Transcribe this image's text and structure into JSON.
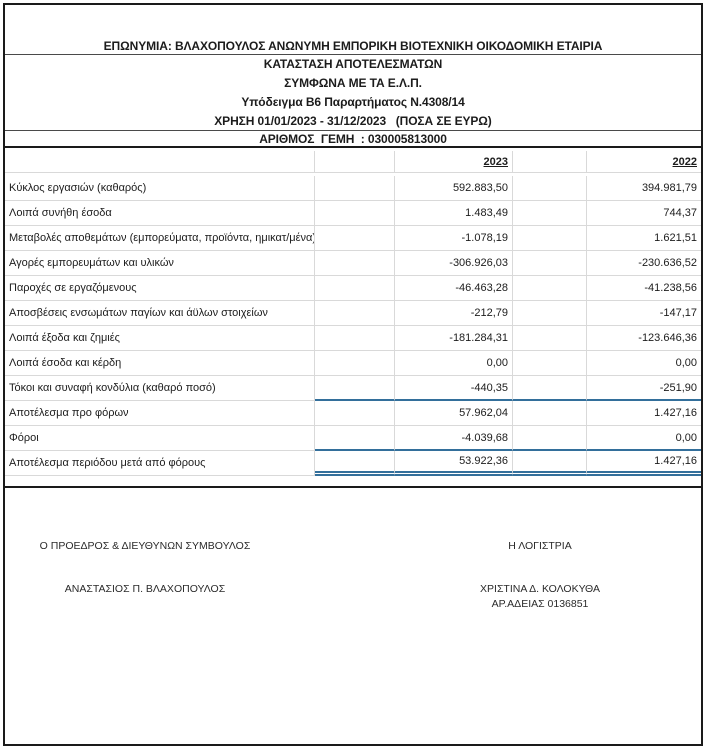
{
  "header": {
    "company_line": "ΕΠΩΝΥΜΙΑ: ΒΛΑΧΟΠΟΥΛΟΣ ΑΝΩΝΥΜΗ ΕΜΠΟΡΙΚΗ ΒΙΟΤΕΧΝΙΚΗ ΟΙΚΟΔΟΜΙΚΗ ΕΤΑΙΡΙΑ",
    "statement_title": "ΚΑΤΑΣΤΑΣΗ ΑΠΟΤΕΛΕΣΜΑΤΩΝ",
    "standards_line": "ΣΥΜΦΩΝΑ ΜΕ ΤΑ Ε.Λ.Π.",
    "template_line": "Υπόδειγμα Β6 Παραρτήματος Ν.4308/14",
    "period_line": "ΧΡΗΣΗ 01/01/2023 - 31/12/2023   (ΠΟΣΑ ΣΕ ΕΥΡΩ)",
    "registry_line": "ΑΡΙΘΜΟΣ  ΓΕΜΗ  : 030005813000"
  },
  "table": {
    "year_columns": [
      "2023",
      "2022"
    ],
    "rows": [
      {
        "label": "Κύκλος εργασιών (καθαρός)",
        "v2023": "592.883,50",
        "v2022": "394.981,79",
        "rule": ""
      },
      {
        "label": "Λοιπά συνήθη έσοδα",
        "v2023": "1.483,49",
        "v2022": "744,37",
        "rule": ""
      },
      {
        "label": "Μεταβολές αποθεμάτων (εμπορεύματα, προϊόντα, ημικατ/μένα)",
        "v2023": "-1.078,19",
        "v2022": "1.621,51",
        "rule": ""
      },
      {
        "label": "Αγορές εμπορευμάτων και υλικών",
        "v2023": "-306.926,03",
        "v2022": "-230.636,52",
        "rule": ""
      },
      {
        "label": "Παροχές σε εργαζόμενους",
        "v2023": "-46.463,28",
        "v2022": "-41.238,56",
        "rule": ""
      },
      {
        "label": "Αποσβέσεις ενσωμάτων παγίων και άϋλων στοιχείων",
        "v2023": "-212,79",
        "v2022": "-147,17",
        "rule": ""
      },
      {
        "label": "Λοιπά έξοδα και ζημιές",
        "v2023": "-181.284,31",
        "v2022": "-123.646,36",
        "rule": ""
      },
      {
        "label": "Λοιπά έσοδα και κέρδη",
        "v2023": "0,00",
        "v2022": "0,00",
        "rule": ""
      },
      {
        "label": "Τόκοι και συναφή κονδύλια (καθαρό ποσό)",
        "v2023": "-440,35",
        "v2022": "-251,90",
        "rule": "blue"
      },
      {
        "label": "Αποτέλεσμα προ φόρων",
        "v2023": "57.962,04",
        "v2022": "1.427,16",
        "rule": ""
      },
      {
        "label": "Φόροι",
        "v2023": "-4.039,68",
        "v2022": "0,00",
        "rule": "blue"
      },
      {
        "label": "Αποτέλεσμα περιόδου μετά από φόρους",
        "v2023": "53.922,36",
        "v2022": "1.427,16",
        "rule": "double"
      }
    ]
  },
  "footer": {
    "left": {
      "title": "Ο ΠΡΟΕΔΡΟΣ & ΔΙΕΥΘΥΝΩΝ ΣΥΜΒΟΥΛΟΣ",
      "name": "ΑΝΑΣΤΑΣΙΟΣ Π. ΒΛΑΧΟΠΟΥΛΟΣ"
    },
    "right": {
      "title": "Η ΛΟΓΙΣΤΡΙΑ",
      "name": "ΧΡΙΣΤΙΝΑ Δ. ΚΟΛΟΚΥΘΑ",
      "license": "ΑΡ.ΑΔΕΙΑΣ 0136851"
    }
  },
  "colors": {
    "accent_blue": "#336f9b",
    "gridline_gray": "#d9d9d9",
    "border_black": "#1a1a1a"
  }
}
